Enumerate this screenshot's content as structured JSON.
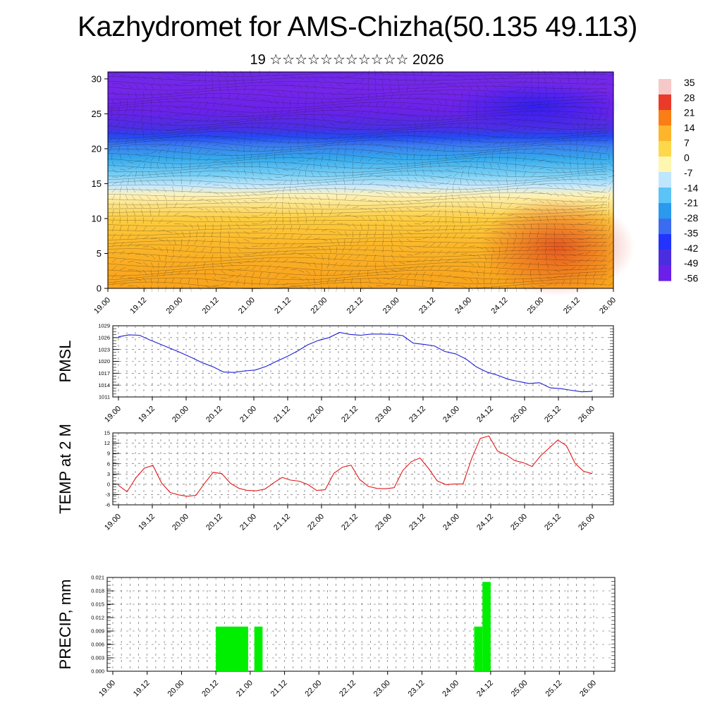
{
  "header": {
    "title": "Kazhydromet for AMS-Chizha(50.135 49.113)",
    "subtitle": "19 ☆☆☆☆☆☆☆☆☆☆☆ 2026"
  },
  "colors": {
    "pmsl_line": "#1f1fd6",
    "temp_line": "#e01b1b",
    "precip_bar": "#00ee00"
  },
  "chart_data": [
    {
      "type": "heatmap",
      "name": "vertical-cross-section",
      "title": "",
      "xlabel": "",
      "ylabel": "",
      "x_tick_labels": [
        "19.00",
        "19.12",
        "20.00",
        "20.12",
        "21.00",
        "21.12",
        "22.00",
        "22.12",
        "23.00",
        "23.12",
        "24.00",
        "24.12",
        "25.00",
        "25.12",
        "26.00"
      ],
      "ylim": [
        0,
        31
      ],
      "y_ticks": [
        "0",
        "5",
        "10",
        "15",
        "20",
        "25",
        "30"
      ],
      "colorbar_labels": [
        "35",
        "28",
        "21",
        "14",
        "7",
        "0",
        "-7",
        "-14",
        "-21",
        "-28",
        "-35",
        "-42",
        "-49",
        "-56"
      ],
      "colorbar_colors": [
        "#f7c8c8",
        "#e93a2a",
        "#fb7d16",
        "#fdb52c",
        "#fdd84a",
        "#fff6b0",
        "#bfe6ff",
        "#5bc3f5",
        "#2a99ee",
        "#3b6cf0",
        "#2233ff",
        "#4b2de0",
        "#6a20e8"
      ]
    },
    {
      "type": "line",
      "name": "pmsl",
      "ylabel": "PMSL",
      "ylim": [
        1011,
        1029
      ],
      "y_ticks": [
        "1011",
        "1014",
        "1017",
        "1020",
        "1023",
        "1026",
        "1029"
      ],
      "x_tick_labels": [
        "19.00",
        "19.12",
        "20.00",
        "20.12",
        "21.00",
        "21.12",
        "22.00",
        "22.12",
        "23.00",
        "23.12",
        "24.00",
        "24.12",
        "25.00",
        "25.12",
        "26.00"
      ],
      "values": [
        1026.2,
        1026.7,
        1026.6,
        1025.4,
        1024.3,
        1023.2,
        1022.1,
        1020.9,
        1019.6,
        1018.6,
        1017.3,
        1017.2,
        1017.6,
        1017.8,
        1018.7,
        1020.0,
        1021.2,
        1022.6,
        1024.2,
        1025.3,
        1026.0,
        1027.3,
        1026.8,
        1026.6,
        1026.9,
        1026.9,
        1026.8,
        1026.5,
        1024.6,
        1024.3,
        1023.9,
        1022.5,
        1021.9,
        1020.6,
        1018.6,
        1017.3,
        1016.5,
        1015.5,
        1014.9,
        1014.4,
        1014.6,
        1013.3,
        1013.1,
        1012.7,
        1012.3,
        1012.4
      ]
    },
    {
      "type": "line",
      "name": "temp-2m",
      "ylabel": "TEMP at 2 M",
      "ylim": [
        -6,
        15
      ],
      "y_ticks": [
        "-6",
        "-3",
        "0",
        "3",
        "6",
        "9",
        "12",
        "15"
      ],
      "x_tick_labels": [
        "19.00",
        "19.12",
        "20.00",
        "20.12",
        "21.00",
        "21.12",
        "22.00",
        "22.12",
        "23.00",
        "23.12",
        "24.00",
        "24.12",
        "25.00",
        "25.12",
        "26.00"
      ],
      "values": [
        -0.3,
        -2.2,
        1.8,
        4.7,
        5.5,
        0.4,
        -2.4,
        -3.1,
        -3.5,
        -3.2,
        0.3,
        3.5,
        3.1,
        0.3,
        -1.2,
        -1.8,
        -1.9,
        -1.4,
        0.4,
        2.0,
        1.2,
        0.9,
        -0.1,
        -1.8,
        -1.6,
        3.2,
        5.0,
        5.6,
        1.4,
        -0.6,
        -1.2,
        -1.3,
        -1.0,
        4.0,
        6.6,
        7.7,
        4.6,
        1.0,
        -0.1,
        0.1,
        0.1,
        7.5,
        13.4,
        14.1,
        9.7,
        8.6,
        6.9,
        6.3,
        5.2,
        8.3,
        10.6,
        12.9,
        11.3,
        6.1,
        3.8,
        3.1
      ]
    },
    {
      "type": "bar",
      "name": "precip",
      "ylabel": "PRECIP, mm",
      "ylim": [
        0,
        0.021
      ],
      "y_ticks": [
        "0.000",
        "0.003",
        "0.006",
        "0.009",
        "0.012",
        "0.015",
        "0.018",
        "0.021"
      ],
      "x_tick_labels": [
        "19.00",
        "19.12",
        "20.00",
        "20.12",
        "21.00",
        "21.12",
        "22.00",
        "22.12",
        "23.00",
        "23.12",
        "24.00",
        "24.12",
        "25.00",
        "25.12",
        "26.00"
      ],
      "bars": [
        {
          "x_start": 20.5,
          "x_end": 20.97,
          "value": 0.01
        },
        {
          "x_start": 21.06,
          "x_end": 21.18,
          "value": 0.01
        },
        {
          "x_start": 24.26,
          "x_end": 24.38,
          "value": 0.01
        },
        {
          "x_start": 24.38,
          "x_end": 24.5,
          "value": 0.02
        }
      ]
    }
  ]
}
